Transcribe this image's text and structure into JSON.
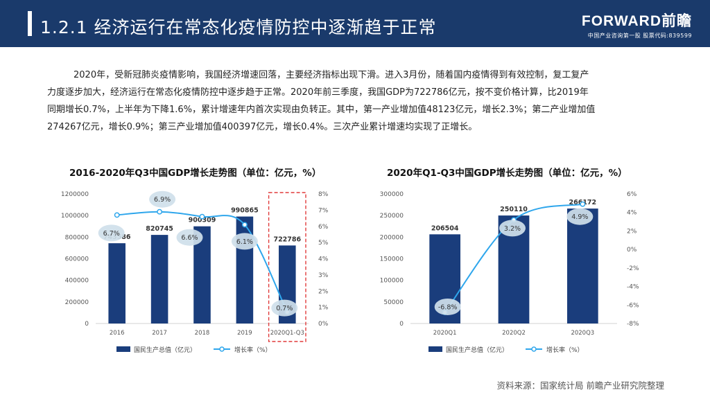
{
  "header": {
    "title": "1.2.1 经济运行在常态化疫情防控中逐渐趋于正常"
  },
  "logo": {
    "brand": "FORWARD前瞻",
    "tagline": "中国产业咨询第一股  股票代码:839599"
  },
  "paragraph": {
    "lines": [
      "2020年，受新冠肺炎疫情影响，我国经济增速回落，主要经济指标出现下滑。进入3月份，随着国内疫情得到有效控制，复工复产",
      "力度逐步加大，经济运行在常态化疫情防控中逐步趋于正常。2020年前三季度，我国GDP为722786亿元，按不变价格计算，比2019年",
      "同期增长0.7%，上半年为下降1.6%，累计增速年内首次实现由负转正。其中，第一产业增加值48123亿元，增长2.3%；第二产业增加值",
      "274267亿元，增长0.9%；第三产业增加值400397亿元，增长0.4%。三次产业累计增速均实现了正增长。"
    ]
  },
  "chart_data": [
    {
      "type": "bar",
      "title": "2016-2020年Q3中国GDP增长走势图（单位：亿元，%）",
      "categories": [
        "2016",
        "2017",
        "2018",
        "2019",
        "2020Q1-Q3"
      ],
      "bar_labels": [
        "743586",
        "820745",
        "900309",
        "990865",
        "722786"
      ],
      "series": [
        {
          "name": "国民生产总值（亿元）",
          "type": "bar",
          "axis": "left",
          "values": [
            743586,
            820745,
            900309,
            990865,
            722786
          ]
        },
        {
          "name": "增长率（%）",
          "type": "line",
          "axis": "right",
          "values": [
            6.7,
            6.9,
            6.6,
            6.1,
            0.7
          ]
        }
      ],
      "line_labels": [
        "6.7%",
        "6.9%",
        "6.6%",
        "6.1%",
        "0.7%"
      ],
      "y_left": {
        "min": 0,
        "max": 1200000,
        "ticks": [
          "0",
          "200000",
          "400000",
          "600000",
          "800000",
          "1000000",
          "1200000"
        ]
      },
      "y_right": {
        "min": 0,
        "max": 8,
        "ticks": [
          "0%",
          "1%",
          "2%",
          "3%",
          "4%",
          "5%",
          "6%",
          "7%",
          "8%"
        ]
      },
      "highlight_category": "2020Q1-Q3",
      "grid": false,
      "legend_position": "bottom"
    },
    {
      "type": "bar",
      "title": "2020年Q1-Q3中国GDP增长走势图（单位：亿元，%）",
      "categories": [
        "2020Q1",
        "2020Q2",
        "2020Q3"
      ],
      "bar_labels": [
        "206504",
        "250110",
        "266172"
      ],
      "series": [
        {
          "name": "国民生产总值（亿元）",
          "type": "bar",
          "axis": "left",
          "values": [
            206504,
            250110,
            266172
          ]
        },
        {
          "name": "增长率（%）",
          "type": "line",
          "axis": "right",
          "values": [
            -6.8,
            3.2,
            4.9
          ]
        }
      ],
      "line_labels": [
        "-6.8%",
        "3.2%",
        "4.9%"
      ],
      "y_left": {
        "min": 0,
        "max": 300000,
        "ticks": [
          "0",
          "50000",
          "100000",
          "150000",
          "200000",
          "250000",
          "300000"
        ]
      },
      "y_right": {
        "min": -8,
        "max": 6,
        "ticks": [
          "-8%",
          "-6%",
          "-4%",
          "-2%",
          "0%",
          "2%",
          "4%",
          "6%"
        ]
      },
      "grid": false,
      "legend_position": "bottom"
    }
  ],
  "source": "资料来源：国家统计局 前瞻产业研究院整理",
  "colors": {
    "header": "#1a3a6b",
    "bar": "#1a3d7c",
    "line": "#2ea6ec",
    "bubble": "#cfe0ea",
    "highlight": "#e03a3a"
  }
}
